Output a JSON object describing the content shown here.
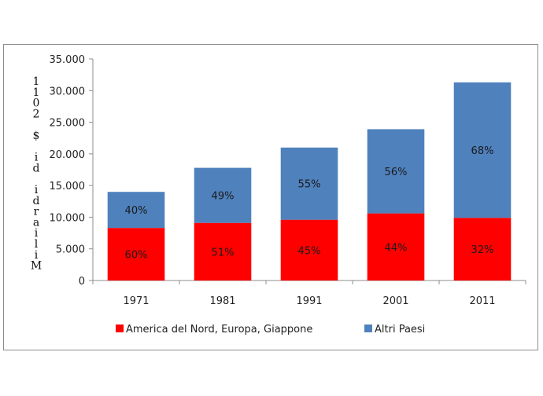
{
  "chart_data": {
    "type": "bar",
    "stacked": true,
    "categories": [
      "1971",
      "1981",
      "1991",
      "2001",
      "2011"
    ],
    "series": [
      {
        "name": "America del Nord, Europa, Giappone",
        "color": "#ff0000",
        "values": [
          8300,
          9100,
          9600,
          10600,
          9900
        ],
        "labels": [
          "60%",
          "51%",
          "45%",
          "44%",
          "32%"
        ]
      },
      {
        "name": "Altri Paesi",
        "color": "#4f81bd",
        "values": [
          5700,
          8700,
          11400,
          13300,
          21400
        ],
        "labels": [
          "40%",
          "49%",
          "55%",
          "56%",
          "68%"
        ]
      }
    ],
    "ylabel": "Miliardi di $ 2011",
    "ylim": [
      0,
      35000
    ],
    "yticks": [
      0,
      5000,
      10000,
      15000,
      20000,
      25000,
      30000,
      35000
    ],
    "ytick_labels": [
      "0",
      "5.000",
      "10.000",
      "15.000",
      "20.000",
      "25.000",
      "30.000",
      "35.000"
    ],
    "grid": false,
    "legend": "bottom"
  }
}
